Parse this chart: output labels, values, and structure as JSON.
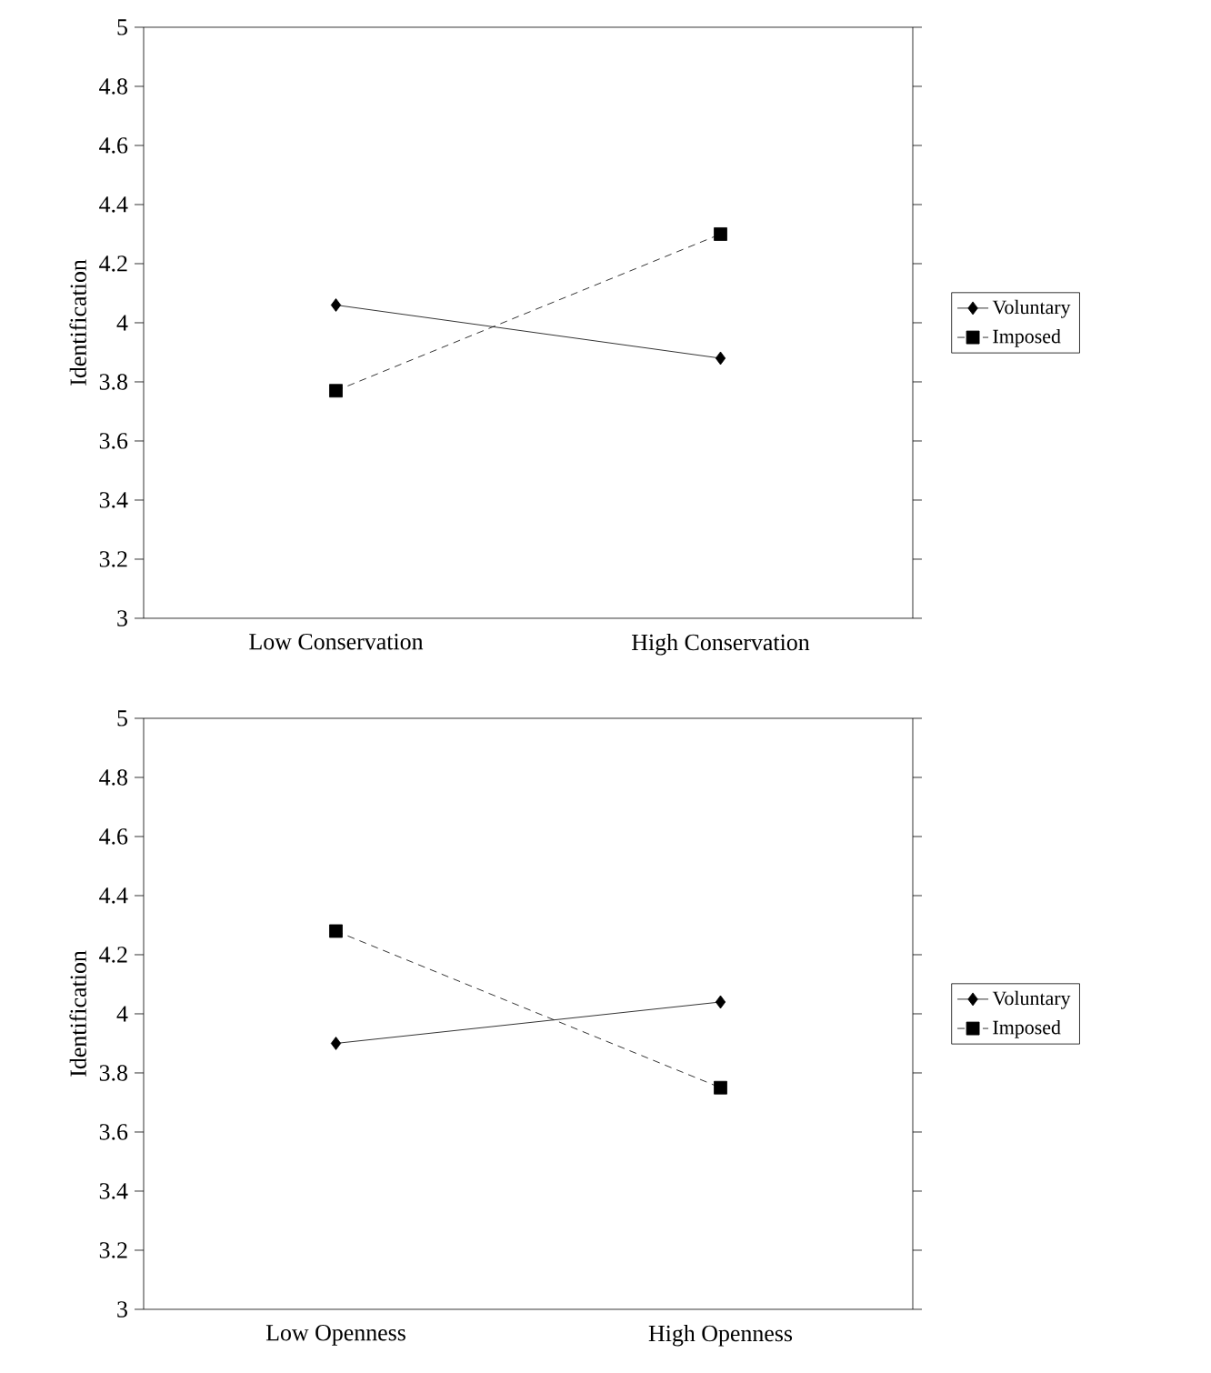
{
  "chart_data": [
    {
      "type": "line",
      "ylabel": "Identification",
      "categories": [
        "Low Conservation",
        "High Conservation"
      ],
      "ylim": [
        3,
        5
      ],
      "yticks": [
        3,
        3.2,
        3.4,
        3.6,
        3.8,
        4,
        4.2,
        4.4,
        4.6,
        4.8,
        5
      ],
      "legend": "right",
      "grid": false,
      "series": [
        {
          "name": "Voluntary",
          "color": "#000000",
          "values": [
            4.06,
            3.88
          ],
          "marker": "diamond",
          "line_style": "solid"
        },
        {
          "name": "Imposed",
          "color": "#000000",
          "values": [
            3.77,
            4.3
          ],
          "marker": "square",
          "line_style": "dashed"
        }
      ]
    },
    {
      "type": "line",
      "ylabel": "Identification",
      "categories": [
        "Low Openness",
        "High Openness"
      ],
      "ylim": [
        3,
        5
      ],
      "yticks": [
        3,
        3.2,
        3.4,
        3.6,
        3.8,
        4,
        4.2,
        4.4,
        4.6,
        4.8,
        5
      ],
      "legend": "right",
      "grid": false,
      "series": [
        {
          "name": "Voluntary",
          "color": "#000000",
          "values": [
            3.9,
            4.04
          ],
          "marker": "diamond",
          "line_style": "solid"
        },
        {
          "name": "Imposed",
          "color": "#000000",
          "values": [
            4.28,
            3.75
          ],
          "marker": "square",
          "line_style": "dashed"
        }
      ]
    }
  ]
}
